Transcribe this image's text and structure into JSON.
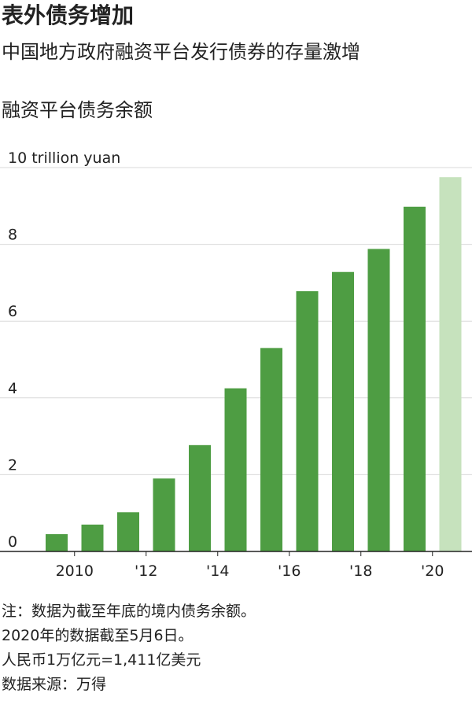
{
  "header": {
    "title": "表外债务增加",
    "subtitle": "中国地方政府融资平台发行债券的存量激增"
  },
  "chart_data": {
    "type": "bar",
    "title": "融资平台债务余额",
    "unit_label": "10 trillion yuan",
    "categories": [
      "2009",
      "2010",
      "2011",
      "2012",
      "2013",
      "2014",
      "2015",
      "2016",
      "2017",
      "2018",
      "2019",
      "2020"
    ],
    "x_tick_labels": [
      {
        "category": "2010",
        "label": "2010"
      },
      {
        "category": "2012",
        "label": "'12"
      },
      {
        "category": "2014",
        "label": "'14"
      },
      {
        "category": "2016",
        "label": "'16"
      },
      {
        "category": "2018",
        "label": "'18"
      },
      {
        "category": "2020",
        "label": "'20"
      }
    ],
    "values": [
      0.45,
      0.7,
      1.02,
      1.9,
      2.77,
      4.25,
      5.3,
      6.78,
      7.28,
      7.88,
      8.98,
      9.75
    ],
    "highlight_index": 11,
    "colors": {
      "bar": "#4e9d43",
      "highlight": "#c6e2bd",
      "grid": "#d9d9d9",
      "axis": "#222222"
    },
    "y_ticks": [
      0,
      2,
      4,
      6,
      8,
      10
    ],
    "ylim": [
      0,
      10
    ],
    "grid": true
  },
  "notes": [
    "注：数据为截至年底的境内债务余额。",
    "2020年的数据截至5月6日。",
    "人民币1万亿元=1,411亿美元",
    "数据来源：万得"
  ]
}
